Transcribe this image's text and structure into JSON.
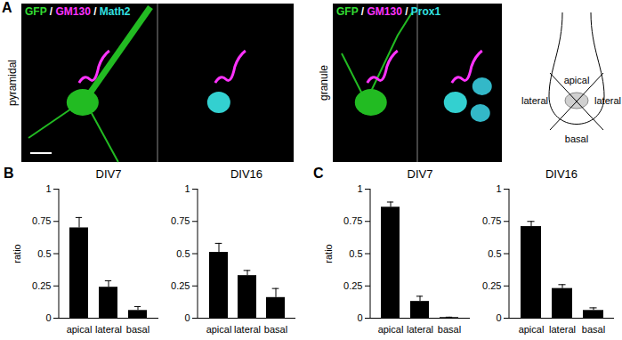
{
  "panel_a": {
    "label": "A",
    "images": [
      {
        "channels": "GFP / GM130 / Math2",
        "cell_type": "pyramidal"
      },
      {
        "channels": "GFP / GM130 / Prox1",
        "cell_type": "granule"
      }
    ],
    "diagram": {
      "apical": "apical",
      "lateral": "lateral",
      "basal": "basal"
    }
  },
  "panel_labels": [
    "B",
    "C"
  ],
  "chart_data": [
    {
      "type": "bar",
      "title": "DIV7",
      "categories": [
        "apical",
        "lateral",
        "basal"
      ],
      "values": [
        0.7,
        0.24,
        0.06
      ],
      "errors": [
        0.08,
        0.05,
        0.03
      ],
      "color": "#000000",
      "ylim": [
        0,
        1
      ],
      "yticks": [
        0,
        0.25,
        0.5,
        0.75,
        1
      ],
      "y_label": "ratio",
      "grid": false
    },
    {
      "type": "bar",
      "title": "DIV16",
      "categories": [
        "apical",
        "lateral",
        "basal"
      ],
      "values": [
        0.51,
        0.33,
        0.16
      ],
      "errors": [
        0.07,
        0.04,
        0.07
      ],
      "color": "#000000",
      "ylim": [
        0,
        1
      ],
      "yticks": [
        0,
        0.25,
        0.5,
        0.75,
        1
      ],
      "grid": false
    },
    {
      "type": "bar",
      "title": "DIV7",
      "categories": [
        "apical",
        "lateral",
        "basal"
      ],
      "values": [
        0.86,
        0.13,
        0.005
      ],
      "errors": [
        0.04,
        0.04,
        0.003
      ],
      "color": "#000000",
      "ylim": [
        0,
        1
      ],
      "yticks": [
        0,
        0.25,
        0.5,
        0.75,
        1
      ],
      "y_label": "ratio",
      "grid": false
    },
    {
      "type": "bar",
      "title": "DIV16",
      "categories": [
        "apical",
        "lateral",
        "basal"
      ],
      "values": [
        0.71,
        0.23,
        0.06
      ],
      "errors": [
        0.04,
        0.03,
        0.02
      ],
      "color": "#000000",
      "ylim": [
        0,
        1
      ],
      "yticks": [
        0,
        0.25,
        0.5,
        0.75,
        1
      ],
      "grid": false
    }
  ]
}
